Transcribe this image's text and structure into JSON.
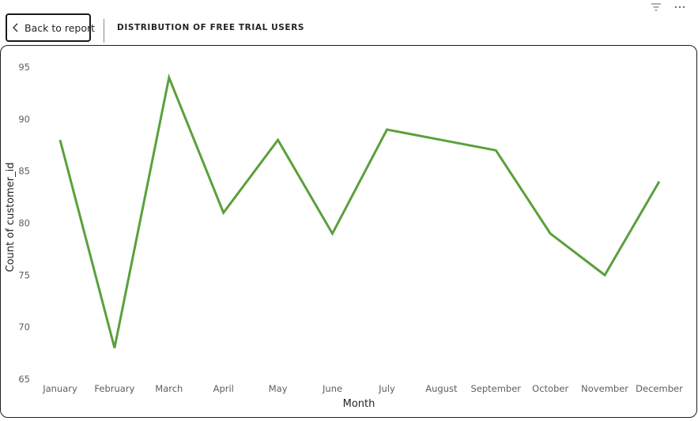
{
  "header": {
    "back_label": "Back to report",
    "title": "DISTRIBUTION OF FREE TRIAL USERS",
    "icons": [
      "filter-icon",
      "more-options-icon"
    ]
  },
  "colors": {
    "line": "#5aa03b",
    "text": "#252423",
    "border": "#1f1f1f"
  },
  "chart_data": {
    "type": "line",
    "title": "DISTRIBUTION OF FREE TRIAL USERS",
    "xlabel": "Month",
    "ylabel": "Count of customer_id",
    "categories": [
      "January",
      "February",
      "March",
      "April",
      "May",
      "June",
      "July",
      "August",
      "September",
      "October",
      "November",
      "December"
    ],
    "series": [
      {
        "values": [
          88,
          68,
          94,
          81,
          88,
          79,
          89,
          88,
          87,
          79,
          75,
          84
        ]
      }
    ],
    "ylim": [
      65,
      95
    ],
    "yticks": [
      95,
      90,
      85,
      80,
      75,
      70,
      65
    ],
    "grid": false,
    "legend": "none"
  }
}
